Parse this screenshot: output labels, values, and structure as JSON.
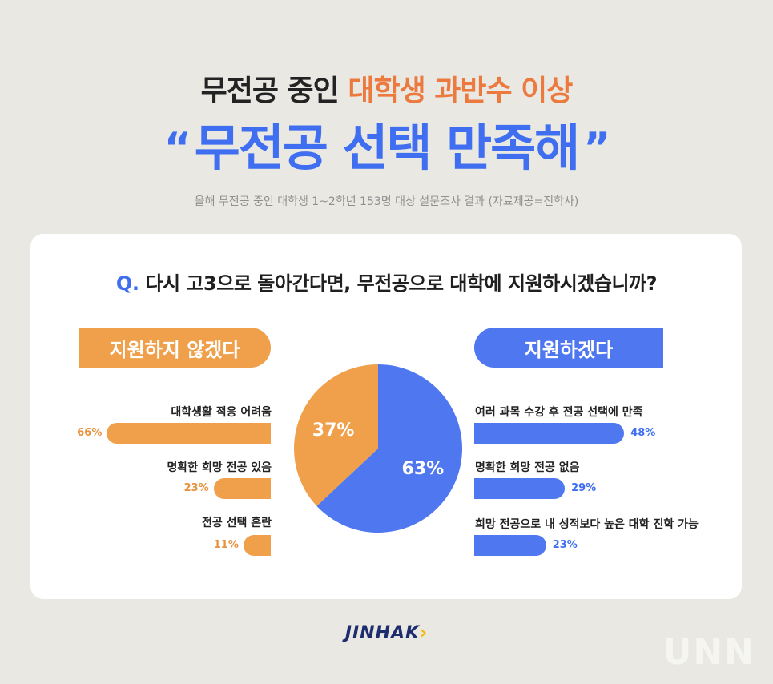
{
  "header": {
    "title_part1": "무전공 중인",
    "title_part2": "대학생 과반수 이상",
    "headline": "무전공 선택 만족해",
    "open_quote": "“",
    "close_quote": "”",
    "subtitle": "올해 무전공 중인 대학생 1~2학년 153명 대상 설문조사 결과 (자료제공=진학사)"
  },
  "question": {
    "prefix": "Q.",
    "text": "다시 고3으로 돌아간다면, 무전공으로 대학에 지원하시겠습니까?"
  },
  "chart_data": {
    "type": "pie",
    "slices": [
      {
        "label": "지원하지 않겠다",
        "value": 37,
        "display": "37%",
        "color": "#f0a04a"
      },
      {
        "label": "지원하겠다",
        "value": 63,
        "display": "63%",
        "color": "#4f77ef"
      }
    ],
    "breakdowns": [
      {
        "group": "지원하지 않겠다",
        "color": "#f0a04a",
        "items": [
          {
            "label": "대학생활 적응 어려움",
            "value": 66,
            "display": "66%"
          },
          {
            "label": "명확한 희망 전공 있음",
            "value": 23,
            "display": "23%"
          },
          {
            "label": "전공 선택 혼란",
            "value": 11,
            "display": "11%"
          }
        ]
      },
      {
        "group": "지원하겠다",
        "color": "#4f77ef",
        "items": [
          {
            "label": "여러 과목 수강 후 전공 선택에 만족",
            "value": 48,
            "display": "48%"
          },
          {
            "label": "명확한 희망 전공 없음",
            "value": 29,
            "display": "29%"
          },
          {
            "label": "희망 전공으로 내 성적보다 높은 대학 진학 가능",
            "value": 23,
            "display": "23%"
          }
        ]
      }
    ]
  },
  "logo": {
    "text": "JINHAK",
    "arrow": "›"
  },
  "watermark": "UNN",
  "colors": {
    "orange": "#f0a04a",
    "blue": "#4f77ef",
    "title_accent": "#ec7a3e"
  }
}
